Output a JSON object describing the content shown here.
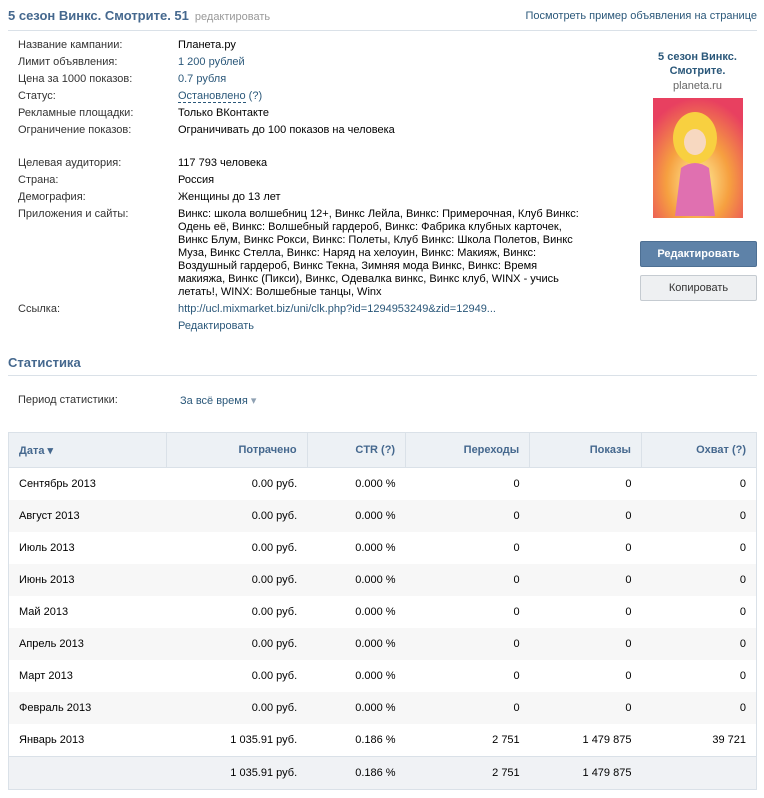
{
  "header": {
    "title": "5 сезон Винкс. Смотрите. 51",
    "edit_link": "редактировать",
    "preview_link": "Посмотреть пример объявления на странице"
  },
  "details": [
    {
      "label": "Название кампании:",
      "value": "Планета.ру"
    },
    {
      "label": "Лимит объявления:",
      "value": "1 200 рублей"
    },
    {
      "label": "Цена за 1000 показов:",
      "value": "0.7 рубля"
    },
    {
      "label": "Статус:",
      "value": "Остановлено",
      "hint": "(?)"
    },
    {
      "label": "Рекламные площадки:",
      "value": "Только ВКонтакте"
    },
    {
      "label": "Ограничение показов:",
      "value": "Ограничивать до 100 показов на человека"
    }
  ],
  "audience": [
    {
      "label": "Целевая аудитория:",
      "value": "117 793 человека"
    },
    {
      "label": "Страна:",
      "value": "Россия"
    },
    {
      "label": "Демография:",
      "value": "Женщины до 13 лет"
    },
    {
      "label": "Приложения и сайты:",
      "value": "Винкс: школа волшебниц 12+, Винкс Лейла, Винкс: Примерочная, Клуб Винкс: Одень её, Винкс: Волшебный гардероб, Винкс: Фабрика клубных карточек, Винкс Блум, Винкс Рокси, Винкс: Полеты, Клуб Винкс: Школа Полетов, Винкс Муза, Винкс Стелла, Винкс: Наряд на хелоуин, Винкс: Макияж, Винкс: Воздушный гардероб, Винкс Текна, Зимняя мода Винкс, Винкс: Время макияжа, Винкс (Пикси), Винкс, Одевалка винкс, Винкс клуб, WINX - учись летать!, WINX: Волшебные танцы, Winx"
    },
    {
      "label": "Ссылка:",
      "value": "http://ucl.mixmarket.biz/uni/clk.php?id=1294953249&zid=12949...",
      "edit": "Редактировать"
    }
  ],
  "ad_preview": {
    "title": "5 сезон Винкс. Смотрите.",
    "domain": "planeta.ru"
  },
  "buttons": {
    "edit": "Редактировать",
    "copy": "Копировать"
  },
  "stats": {
    "title": "Статистика",
    "period_label": "Период статистики:",
    "period_value": "За всё время"
  },
  "table": {
    "headers": [
      "Дата",
      "Потрачено",
      "CTR (?)",
      "Переходы",
      "Показы",
      "Охват (?)"
    ],
    "rows": [
      [
        "Сентябрь 2013",
        "0.00 руб.",
        "0.000 %",
        "0",
        "0",
        "0"
      ],
      [
        "Август 2013",
        "0.00 руб.",
        "0.000 %",
        "0",
        "0",
        "0"
      ],
      [
        "Июль 2013",
        "0.00 руб.",
        "0.000 %",
        "0",
        "0",
        "0"
      ],
      [
        "Июнь 2013",
        "0.00 руб.",
        "0.000 %",
        "0",
        "0",
        "0"
      ],
      [
        "Май 2013",
        "0.00 руб.",
        "0.000 %",
        "0",
        "0",
        "0"
      ],
      [
        "Апрель 2013",
        "0.00 руб.",
        "0.000 %",
        "0",
        "0",
        "0"
      ],
      [
        "Март 2013",
        "0.00 руб.",
        "0.000 %",
        "0",
        "0",
        "0"
      ],
      [
        "Февраль 2013",
        "0.00 руб.",
        "0.000 %",
        "0",
        "0",
        "0"
      ],
      [
        "Январь 2013",
        "1 035.91 руб.",
        "0.186 %",
        "2 751",
        "1 479 875",
        "39 721"
      ]
    ],
    "total": [
      "1 035.91 руб.",
      "0.186 %",
      "2 751",
      "1 479 875"
    ]
  }
}
